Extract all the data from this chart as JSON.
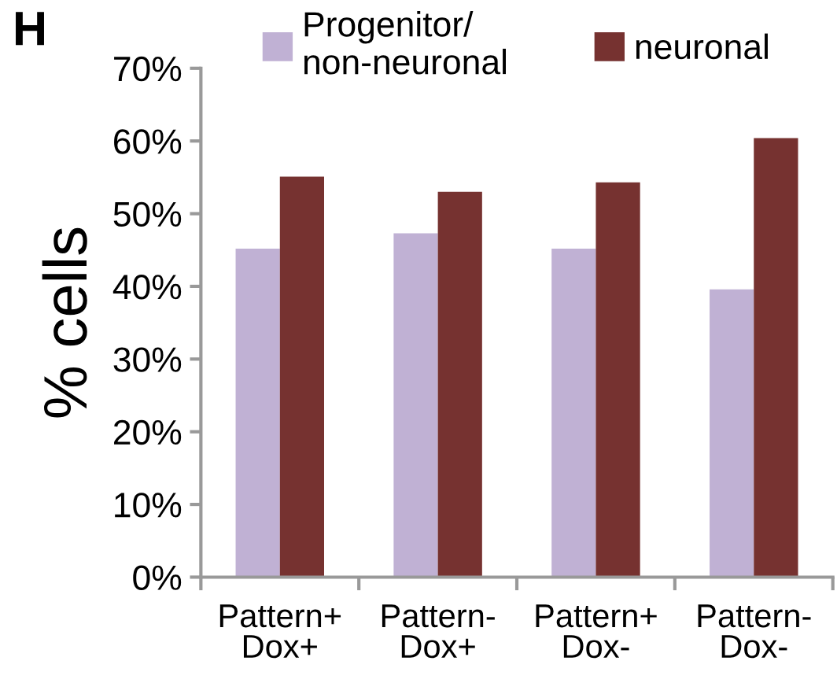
{
  "chart_data": {
    "type": "bar",
    "categories": [
      "Pattern+\nDox+",
      "Pattern-\nDox+",
      "Pattern+\nDox-",
      "Pattern-\nDox-"
    ],
    "series": [
      {
        "name": "Progenitor/\nnon-neuronal",
        "color": "#c0b1d4",
        "values": [
          45.2,
          47.3,
          45.2,
          39.6
        ]
      },
      {
        "name": "neuronal",
        "color": "#763230",
        "values": [
          55.1,
          53.0,
          54.3,
          60.4
        ]
      }
    ],
    "ylabel": "% cells",
    "ylim": [
      0,
      70
    ],
    "yticks": [
      {
        "value": 0,
        "label": "0%"
      },
      {
        "value": 10,
        "label": "10%"
      },
      {
        "value": 20,
        "label": "20%"
      },
      {
        "value": 30,
        "label": "30%"
      },
      {
        "value": 40,
        "label": "40%"
      },
      {
        "value": 50,
        "label": "50%"
      },
      {
        "value": 60,
        "label": "60%"
      },
      {
        "value": 70,
        "label": "70%"
      }
    ],
    "annotations": [
      "H"
    ],
    "legend": "top",
    "grid": false
  }
}
